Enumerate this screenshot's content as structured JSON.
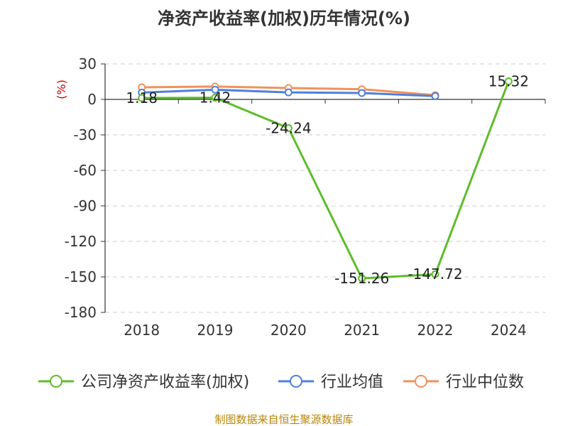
{
  "chart_data": {
    "type": "line",
    "title": "净资产收益率(加权)历年情况(%)",
    "unit_label": "(%)",
    "categories": [
      "2018",
      "2019",
      "2020",
      "2021",
      "2022",
      "2024"
    ],
    "ylim": [
      -180,
      30
    ],
    "yticks": [
      30,
      0,
      -30,
      -60,
      -90,
      -120,
      -150,
      -180
    ],
    "grid": true,
    "legend_position": "bottom",
    "series": [
      {
        "name": "公司净资产收益率(加权)",
        "color": "#5dbd2a",
        "values": [
          1.18,
          1.42,
          -24.24,
          -151.26,
          -147.72,
          15.32
        ],
        "labels": [
          "1.18",
          "1.42",
          "-24.24",
          "-151.26",
          "-147.72",
          "15.32"
        ]
      },
      {
        "name": "行业均值",
        "color": "#4f7fdc",
        "values": [
          5.8,
          8.2,
          5.9,
          5.4,
          2.8,
          null
        ]
      },
      {
        "name": "行业中位数",
        "color": "#f0925a",
        "values": [
          10.2,
          10.9,
          9.6,
          8.6,
          3.6,
          null
        ]
      }
    ]
  },
  "source": "制图数据来自恒生聚源数据库"
}
